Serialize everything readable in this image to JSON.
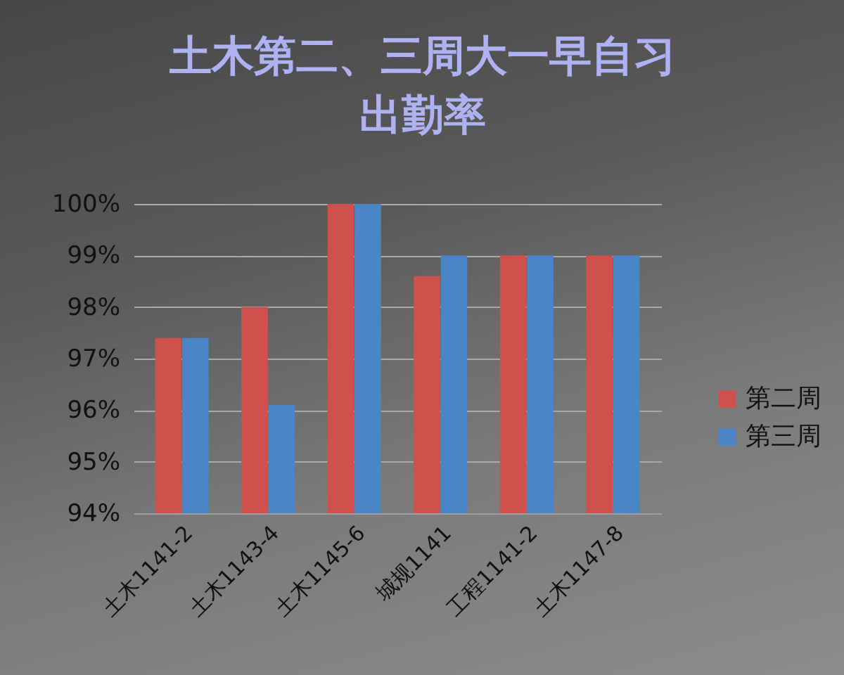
{
  "chart_data": {
    "type": "bar",
    "title": "土木第二、三周大一早自习出勤率",
    "categories": [
      "土木1141-2",
      "土木1143-4",
      "土木1145-6",
      "城规1141",
      "工程1141-2",
      "土木1147-8"
    ],
    "series": [
      {
        "name": "第二周",
        "color": "#cf504d",
        "values": [
          97.4,
          98.0,
          100,
          98.6,
          99.0,
          99.0
        ]
      },
      {
        "name": "第三周",
        "color": "#4a85c8",
        "values": [
          97.4,
          96.1,
          100,
          99.0,
          99.0,
          99.0
        ]
      }
    ],
    "ylim": [
      94,
      100
    ],
    "yticks": [
      {
        "value": 94,
        "label": "94%"
      },
      {
        "value": 95,
        "label": "95%"
      },
      {
        "value": 96,
        "label": "96%"
      },
      {
        "value": 97,
        "label": "97%"
      },
      {
        "value": 98,
        "label": "98%"
      },
      {
        "value": 99,
        "label": "99%"
      },
      {
        "value": 100,
        "label": "100%"
      }
    ],
    "grid": "y",
    "legend": "right"
  }
}
